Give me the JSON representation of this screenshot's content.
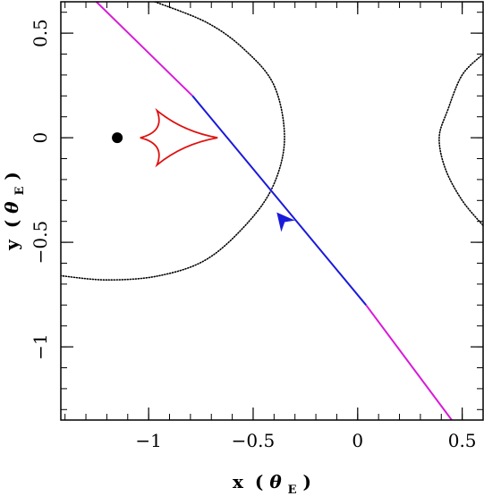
{
  "chart_data": {
    "type": "line",
    "xlim": [
      -1.42,
      0.6
    ],
    "ylim": [
      -1.35,
      0.65
    ],
    "x_ticks": [
      {
        "value": -1,
        "label": "−1"
      },
      {
        "value": -0.5,
        "label": "−0.5"
      },
      {
        "value": 0,
        "label": "0"
      },
      {
        "value": 0.5,
        "label": "0.5"
      }
    ],
    "y_ticks": [
      {
        "value": 0.5,
        "label": "0.5"
      },
      {
        "value": 0,
        "label": "0"
      },
      {
        "value": -0.5,
        "label": "−0.5"
      },
      {
        "value": -1,
        "label": "−1"
      }
    ],
    "x_minor_step": 0.1,
    "y_minor_step": 0.1,
    "xlabel": {
      "main": "x",
      "open": "(",
      "theta": "θ",
      "sub": "E",
      "close": ")"
    },
    "ylabel": {
      "main": "y",
      "open": "(",
      "theta": "θ",
      "sub": "E",
      "close": ")"
    },
    "grid": false,
    "colors": {
      "caustic": "#e01010",
      "critical_curve": "#000000",
      "trajectory_near": "#1a1adb",
      "trajectory_far": "#d81ad8",
      "lens_point": "#000000",
      "arrow": "#1a1adb"
    },
    "lens": {
      "x": -1.15,
      "y": 0.0
    },
    "trajectory": {
      "far_segments": [
        {
          "x": [
            -1.25,
            -0.79
          ],
          "y": [
            0.65,
            0.2
          ]
        },
        {
          "x": [
            0.04,
            0.45
          ],
          "y": [
            -0.8,
            -1.35
          ]
        }
      ],
      "near_segment": {
        "x": [
          -0.79,
          0.04
        ],
        "y": [
          0.2,
          -0.8
        ]
      },
      "arrow_at": {
        "x": -0.36,
        "y": -0.39
      },
      "direction": "toward upper-left"
    },
    "caustic": {
      "cusps": [
        {
          "x": -0.67,
          "y": 0.0
        },
        {
          "x": -0.96,
          "y": 0.13
        },
        {
          "x": -1.04,
          "y": 0.0
        },
        {
          "x": -0.96,
          "y": -0.13
        }
      ]
    },
    "critical_curves": [
      {
        "points": [
          {
            "x": -0.97,
            "y": 0.65
          },
          {
            "x": -0.72,
            "y": 0.55
          },
          {
            "x": -0.54,
            "y": 0.42
          },
          {
            "x": -0.4,
            "y": 0.25
          },
          {
            "x": -0.35,
            "y": 0.0
          },
          {
            "x": -0.4,
            "y": -0.22
          },
          {
            "x": -0.52,
            "y": -0.4
          },
          {
            "x": -0.72,
            "y": -0.58
          },
          {
            "x": -0.95,
            "y": -0.66
          },
          {
            "x": -1.2,
            "y": -0.68
          },
          {
            "x": -1.42,
            "y": -0.66
          }
        ]
      },
      {
        "points": [
          {
            "x": 0.6,
            "y": 0.4
          },
          {
            "x": 0.5,
            "y": 0.3
          },
          {
            "x": 0.43,
            "y": 0.13
          },
          {
            "x": 0.39,
            "y": 0.0
          },
          {
            "x": 0.42,
            "y": -0.15
          },
          {
            "x": 0.5,
            "y": -0.3
          },
          {
            "x": 0.6,
            "y": -0.42
          }
        ]
      }
    ]
  }
}
